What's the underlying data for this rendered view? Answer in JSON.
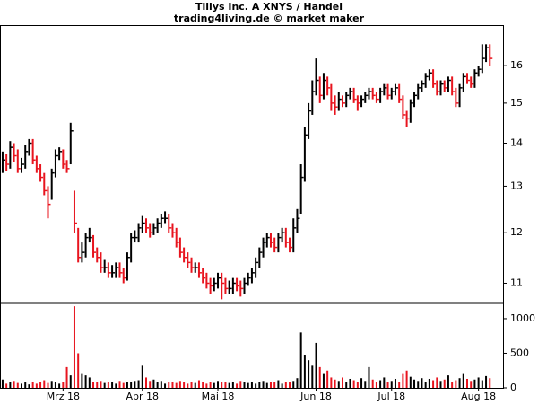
{
  "chart_data": {
    "type": "ohlc",
    "title": "Tillys Inc. A XNYS / Handel",
    "subtitle": "trading4living.de © market maker",
    "up_color": "#000000",
    "down_color": "#e8141e",
    "ylog": true,
    "xlim": [
      -0.7,
      132.5
    ],
    "xticks": [
      {
        "value": 16,
        "label": "Mrz 18"
      },
      {
        "value": 37,
        "label": "Apr 18"
      },
      {
        "value": 57,
        "label": "Mai 18"
      },
      {
        "value": 83,
        "label": "Jun 18"
      },
      {
        "value": 103,
        "label": "Jul 18"
      },
      {
        "value": 126,
        "label": "Aug 18"
      }
    ],
    "ylim": [
      10.64,
      17.13
    ],
    "yticks": [
      11,
      12,
      13,
      14,
      15,
      16
    ],
    "y2lim": [
      0,
      1220
    ],
    "y2ticks": [
      0,
      500,
      1000
    ],
    "high": [
      13.8,
      13.75,
      14.05,
      14.0,
      13.85,
      13.65,
      13.95,
      14.1,
      14.1,
      13.7,
      13.5,
      13.3,
      13.0,
      13.4,
      13.85,
      13.9,
      13.85,
      13.6,
      14.5,
      12.9,
      12.1,
      11.8,
      12.0,
      12.1,
      11.95,
      11.7,
      11.6,
      11.45,
      11.4,
      11.35,
      11.4,
      11.4,
      11.3,
      11.6,
      12.0,
      12.05,
      12.2,
      12.35,
      12.3,
      12.2,
      12.2,
      12.3,
      12.4,
      12.45,
      12.4,
      12.2,
      12.1,
      11.9,
      11.7,
      11.6,
      11.5,
      11.4,
      11.4,
      11.3,
      11.2,
      11.1,
      11.1,
      11.2,
      11.2,
      11.1,
      11.05,
      11.1,
      11.1,
      11.05,
      11.1,
      11.2,
      11.3,
      11.5,
      11.7,
      11.9,
      12.0,
      12.0,
      11.9,
      12.0,
      12.1,
      12.1,
      11.9,
      12.3,
      12.5,
      13.5,
      14.4,
      15.0,
      15.6,
      16.2,
      15.7,
      15.8,
      15.7,
      15.5,
      15.2,
      15.3,
      15.2,
      15.3,
      15.4,
      15.4,
      15.2,
      15.2,
      15.3,
      15.4,
      15.4,
      15.3,
      15.4,
      15.5,
      15.5,
      15.4,
      15.5,
      15.5,
      15.2,
      14.8,
      15.1,
      15.3,
      15.5,
      15.6,
      15.8,
      15.9,
      15.9,
      15.6,
      15.6,
      15.6,
      15.7,
      15.7,
      15.4,
      15.5,
      15.8,
      15.8,
      15.7,
      15.9,
      16.0,
      16.6,
      16.6,
      16.6
    ],
    "low": [
      13.3,
      13.35,
      13.4,
      13.55,
      13.3,
      13.3,
      13.4,
      13.7,
      13.5,
      13.3,
      13.1,
      12.8,
      12.3,
      12.7,
      13.2,
      13.6,
      13.4,
      13.3,
      13.5,
      12.0,
      11.4,
      11.4,
      11.5,
      11.8,
      11.5,
      11.4,
      11.2,
      11.2,
      11.1,
      11.1,
      11.1,
      11.1,
      11.0,
      11.05,
      11.4,
      11.8,
      11.8,
      12.0,
      12.0,
      11.9,
      11.95,
      12.0,
      12.1,
      12.2,
      12.0,
      11.9,
      11.7,
      11.5,
      11.4,
      11.3,
      11.2,
      11.2,
      11.1,
      11.0,
      10.9,
      10.8,
      10.85,
      10.9,
      10.7,
      10.8,
      10.8,
      10.8,
      10.85,
      10.75,
      10.8,
      10.95,
      11.0,
      11.1,
      11.3,
      11.5,
      11.7,
      11.7,
      11.6,
      11.6,
      11.8,
      11.7,
      11.6,
      11.6,
      12.0,
      12.4,
      13.1,
      14.1,
      14.7,
      15.2,
      15.0,
      15.1,
      15.2,
      14.8,
      14.7,
      14.8,
      14.9,
      14.9,
      15.1,
      15.0,
      14.8,
      14.9,
      15.0,
      15.1,
      15.1,
      15.0,
      15.0,
      15.2,
      15.1,
      15.1,
      15.2,
      15.0,
      14.6,
      14.4,
      14.5,
      14.9,
      15.1,
      15.3,
      15.4,
      15.6,
      15.4,
      15.2,
      15.2,
      15.3,
      15.3,
      15.2,
      14.9,
      14.9,
      15.3,
      15.5,
      15.4,
      15.4,
      15.7,
      15.8,
      16.1,
      16.0
    ],
    "close": [
      13.6,
      13.5,
      13.9,
      13.7,
      13.4,
      13.5,
      13.8,
      14.0,
      13.6,
      13.4,
      13.2,
      12.9,
      12.6,
      13.3,
      13.7,
      13.8,
      13.5,
      13.4,
      14.3,
      12.2,
      11.5,
      11.6,
      11.9,
      11.9,
      11.6,
      11.5,
      11.3,
      11.3,
      11.2,
      11.2,
      11.3,
      11.2,
      11.1,
      11.5,
      11.9,
      11.9,
      12.1,
      12.2,
      12.1,
      12.0,
      12.1,
      12.2,
      12.3,
      12.3,
      12.1,
      12.0,
      11.8,
      11.6,
      11.5,
      11.4,
      11.3,
      11.3,
      11.2,
      11.1,
      11.0,
      10.95,
      11.0,
      11.1,
      11.0,
      10.9,
      10.9,
      11.0,
      10.95,
      10.9,
      11.0,
      11.1,
      11.2,
      11.4,
      11.6,
      11.8,
      11.9,
      11.8,
      11.7,
      11.9,
      12.0,
      11.8,
      11.7,
      12.1,
      12.3,
      13.2,
      14.2,
      14.8,
      15.3,
      15.6,
      15.2,
      15.6,
      15.4,
      15.0,
      14.9,
      15.1,
      15.0,
      15.2,
      15.3,
      15.1,
      15.0,
      15.1,
      15.2,
      15.3,
      15.2,
      15.1,
      15.3,
      15.4,
      15.2,
      15.3,
      15.4,
      15.1,
      14.7,
      14.6,
      15.0,
      15.2,
      15.4,
      15.5,
      15.7,
      15.8,
      15.5,
      15.3,
      15.5,
      15.4,
      15.6,
      15.3,
      15.0,
      15.4,
      15.7,
      15.6,
      15.5,
      15.8,
      15.9,
      16.2,
      16.5,
      16.2
    ],
    "volume": [
      120,
      60,
      80,
      100,
      70,
      60,
      90,
      50,
      80,
      60,
      90,
      110,
      70,
      100,
      80,
      60,
      90,
      300,
      180,
      1180,
      500,
      200,
      180,
      150,
      90,
      80,
      100,
      70,
      90,
      80,
      60,
      100,
      70,
      90,
      80,
      100,
      110,
      320,
      150,
      100,
      120,
      80,
      100,
      60,
      80,
      90,
      70,
      100,
      80,
      60,
      90,
      70,
      110,
      80,
      60,
      90,
      70,
      100,
      80,
      90,
      70,
      80,
      60,
      100,
      80,
      70,
      90,
      60,
      80,
      100,
      70,
      90,
      80,
      110,
      60,
      90,
      80,
      100,
      140,
      800,
      480,
      400,
      320,
      650,
      300,
      200,
      250,
      150,
      120,
      100,
      150,
      90,
      130,
      110,
      80,
      140,
      100,
      300,
      120,
      90,
      110,
      150,
      80,
      100,
      130,
      90,
      200,
      250,
      160,
      120,
      100,
      140,
      90,
      130,
      110,
      150,
      100,
      120,
      180,
      90,
      110,
      140,
      200,
      130,
      100,
      120,
      150,
      110,
      170,
      140
    ]
  }
}
